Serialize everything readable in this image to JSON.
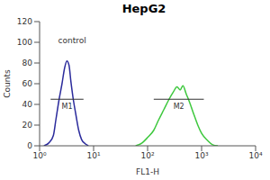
{
  "chart_data": {
    "type": "line",
    "title": "HepG2",
    "x_label": "FL1-H",
    "y_label": "Counts",
    "log": "x",
    "xlim": [
      1,
      10000
    ],
    "xticks": [
      {
        "value": 1,
        "label": "10⁰"
      },
      {
        "value": 10,
        "label": "10¹"
      },
      {
        "value": 100,
        "label": "10²"
      },
      {
        "value": 1000,
        "label": "10³"
      },
      {
        "value": 10000,
        "label": "10⁴"
      }
    ],
    "ylim": [
      0,
      120
    ],
    "yticks": [
      0,
      20,
      40,
      60,
      80,
      100,
      120
    ],
    "series": [
      {
        "color": "#2b2b9c",
        "x": [
          1.2,
          1.5,
          1.8,
          2.0,
          2.3,
          2.6,
          2.9,
          3.2,
          3.5,
          3.8,
          4.2,
          4.7,
          5.3,
          6.0,
          7.0,
          8.0
        ],
        "values": [
          0,
          3,
          10,
          25,
          45,
          60,
          75,
          82,
          78,
          62,
          45,
          30,
          15,
          6,
          2,
          0
        ]
      },
      {
        "color": "#3ec83e",
        "x": [
          60,
          80,
          100,
          130,
          160,
          200,
          250,
          300,
          350,
          400,
          450,
          520,
          600,
          700,
          850,
          1000,
          1300,
          1600,
          2000
        ],
        "values": [
          0,
          3,
          8,
          15,
          25,
          35,
          45,
          52,
          57,
          54,
          58,
          50,
          42,
          32,
          20,
          12,
          5,
          1,
          0
        ]
      }
    ],
    "markers": [
      {
        "label": "M1",
        "x": [
          1.6,
          6.5
        ],
        "y": 45
      },
      {
        "label": "M2",
        "x": [
          130,
          1100
        ],
        "y": 45
      }
    ],
    "annotations": [
      {
        "text": "control",
        "x": 4,
        "y": 102
      }
    ]
  }
}
